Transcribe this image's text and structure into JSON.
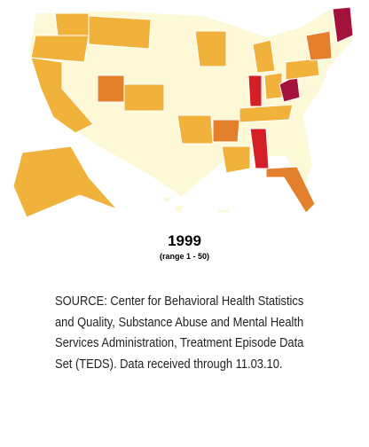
{
  "map": {
    "year": "1999",
    "range": "(range 1 - 50)"
  },
  "source": {
    "lines": [
      "SOURCE: Center for Behavioral Health Statistics",
      "and Quality, Substance Abuse and Mental Health",
      "Services Administration, Treatment Episode Data",
      "Set (TEDS). Data received through 11.03.10."
    ]
  }
}
